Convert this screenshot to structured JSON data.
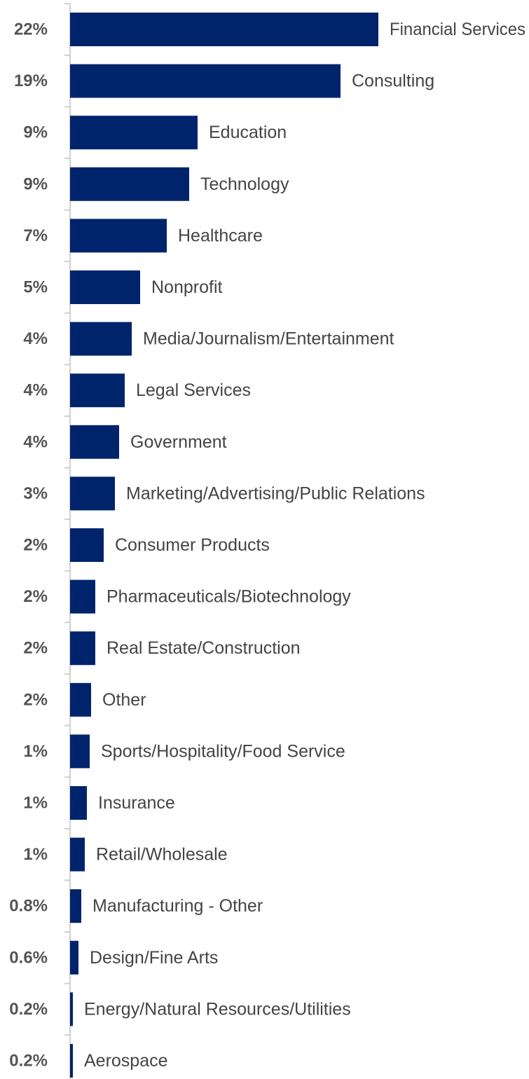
{
  "chart_data": {
    "type": "bar",
    "orientation": "horizontal",
    "bar_color": "#00246b",
    "grid": false,
    "legend": "none",
    "categories": [
      "Financial Services",
      "Consulting",
      "Education",
      "Technology",
      "Healthcare",
      "Nonprofit",
      "Media/Journalism/Entertainment",
      "Legal Services",
      "Government",
      "Marketing/Advertising/Public Relations",
      "Consumer Products",
      "Pharmaceuticals/Biotechnology",
      "Real Estate/Construction",
      "Other",
      "Sports/Hospitality/Food Service",
      "Insurance",
      "Retail/Wholesale",
      "Manufacturing - Other",
      "Design/Fine Arts",
      "Energy/Natural Resources/Utilities",
      "Aerospace"
    ],
    "values": [
      22,
      19.3,
      9.1,
      8.5,
      6.9,
      5,
      4.4,
      3.9,
      3.5,
      3.2,
      2.4,
      1.8,
      1.8,
      1.5,
      1.4,
      1.2,
      1.05,
      0.8,
      0.6,
      0.2,
      0.2
    ],
    "value_labels": [
      "22%",
      "19%",
      "9%",
      "9%",
      "7%",
      "5%",
      "4%",
      "4%",
      "4%",
      "3%",
      "2%",
      "2%",
      "2%",
      "2%",
      "1%",
      "1%",
      "1%",
      "0.8%",
      "0.6%",
      "0.2%",
      "0.2%"
    ],
    "xlim": [
      0,
      22
    ]
  }
}
